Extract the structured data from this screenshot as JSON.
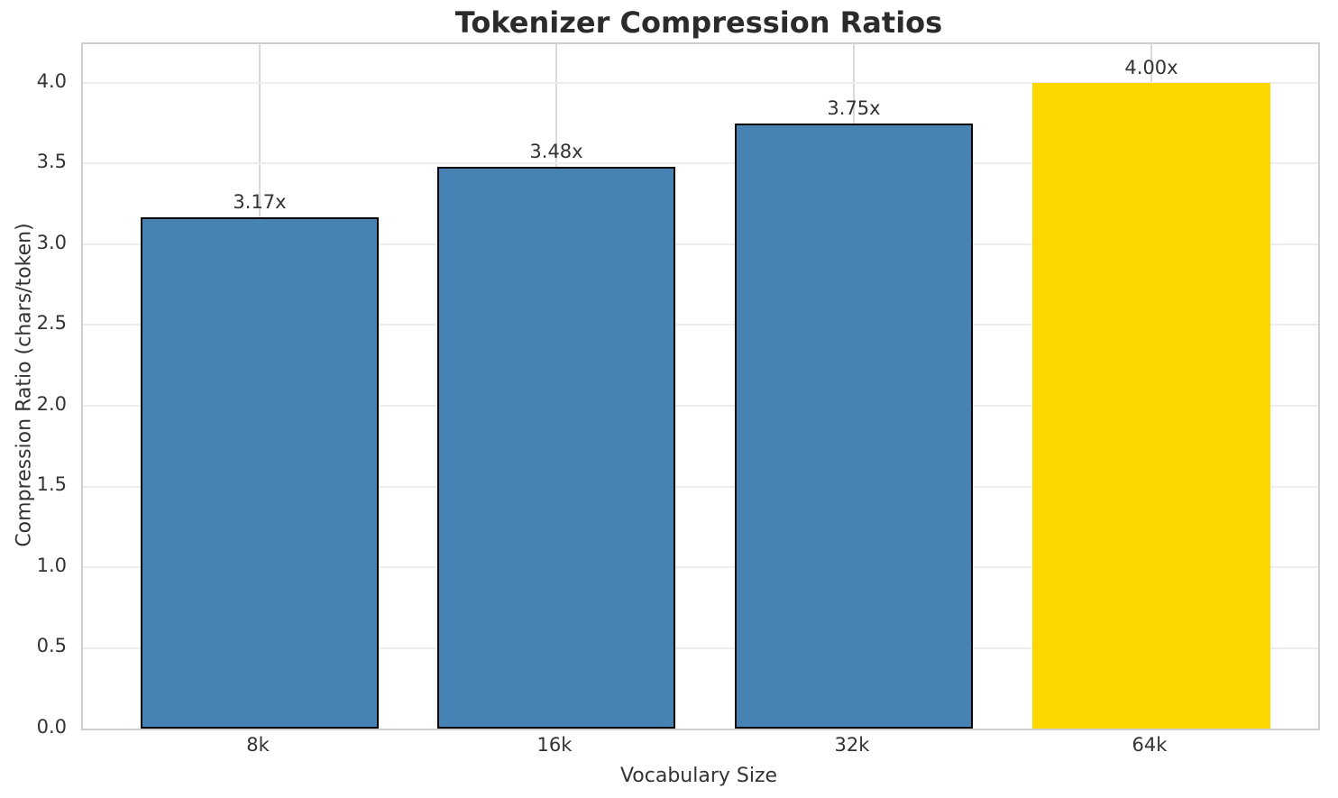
{
  "chart_data": {
    "type": "bar",
    "title": "Tokenizer Compression Ratios",
    "xlabel": "Vocabulary Size",
    "ylabel": "Compression Ratio (chars/token)",
    "categories": [
      "8k",
      "16k",
      "32k",
      "64k"
    ],
    "values": [
      3.17,
      3.48,
      3.75,
      4.0
    ],
    "bar_labels": [
      "3.17x",
      "3.48x",
      "3.75x",
      "4.00x"
    ],
    "bar_colors": [
      "#4682b4",
      "#4682b4",
      "#4682b4",
      "#ffd700"
    ],
    "bar_edge_colors": [
      "#000000",
      "#000000",
      "#000000",
      "none"
    ],
    "ytick_labels": [
      "0.0",
      "0.5",
      "1.0",
      "1.5",
      "2.0",
      "2.5",
      "3.0",
      "3.5",
      "4.0"
    ],
    "yticks": [
      0.0,
      0.5,
      1.0,
      1.5,
      2.0,
      2.5,
      3.0,
      3.5,
      4.0
    ],
    "ylim": [
      0,
      4.24
    ],
    "grid": true,
    "grid_axes": "both",
    "legend_position": "none",
    "background_color": "#ffffff",
    "text_color": "#2b2b2b",
    "highlight_color": "#ffd700",
    "series_color": "#4682b4"
  }
}
